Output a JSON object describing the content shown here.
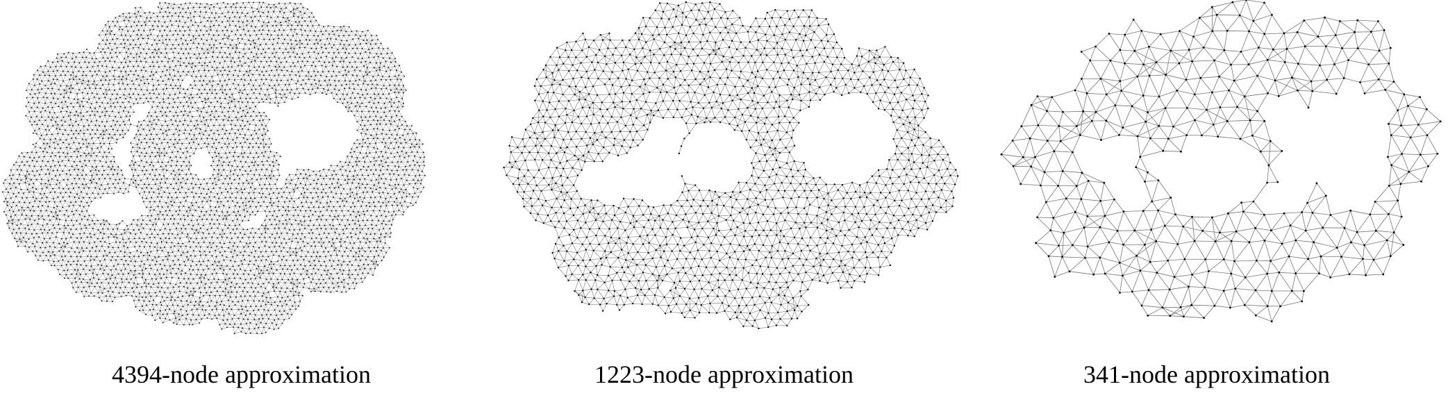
{
  "panels": [
    {
      "caption": "4394-node approximation",
      "nodes": 4394
    },
    {
      "caption": "1223-node approximation",
      "nodes": 1223
    },
    {
      "caption": "341-node approximation",
      "nodes": 341
    }
  ],
  "colors": {
    "background": "#ffffff",
    "edge": "#000000",
    "node": "#000000"
  }
}
